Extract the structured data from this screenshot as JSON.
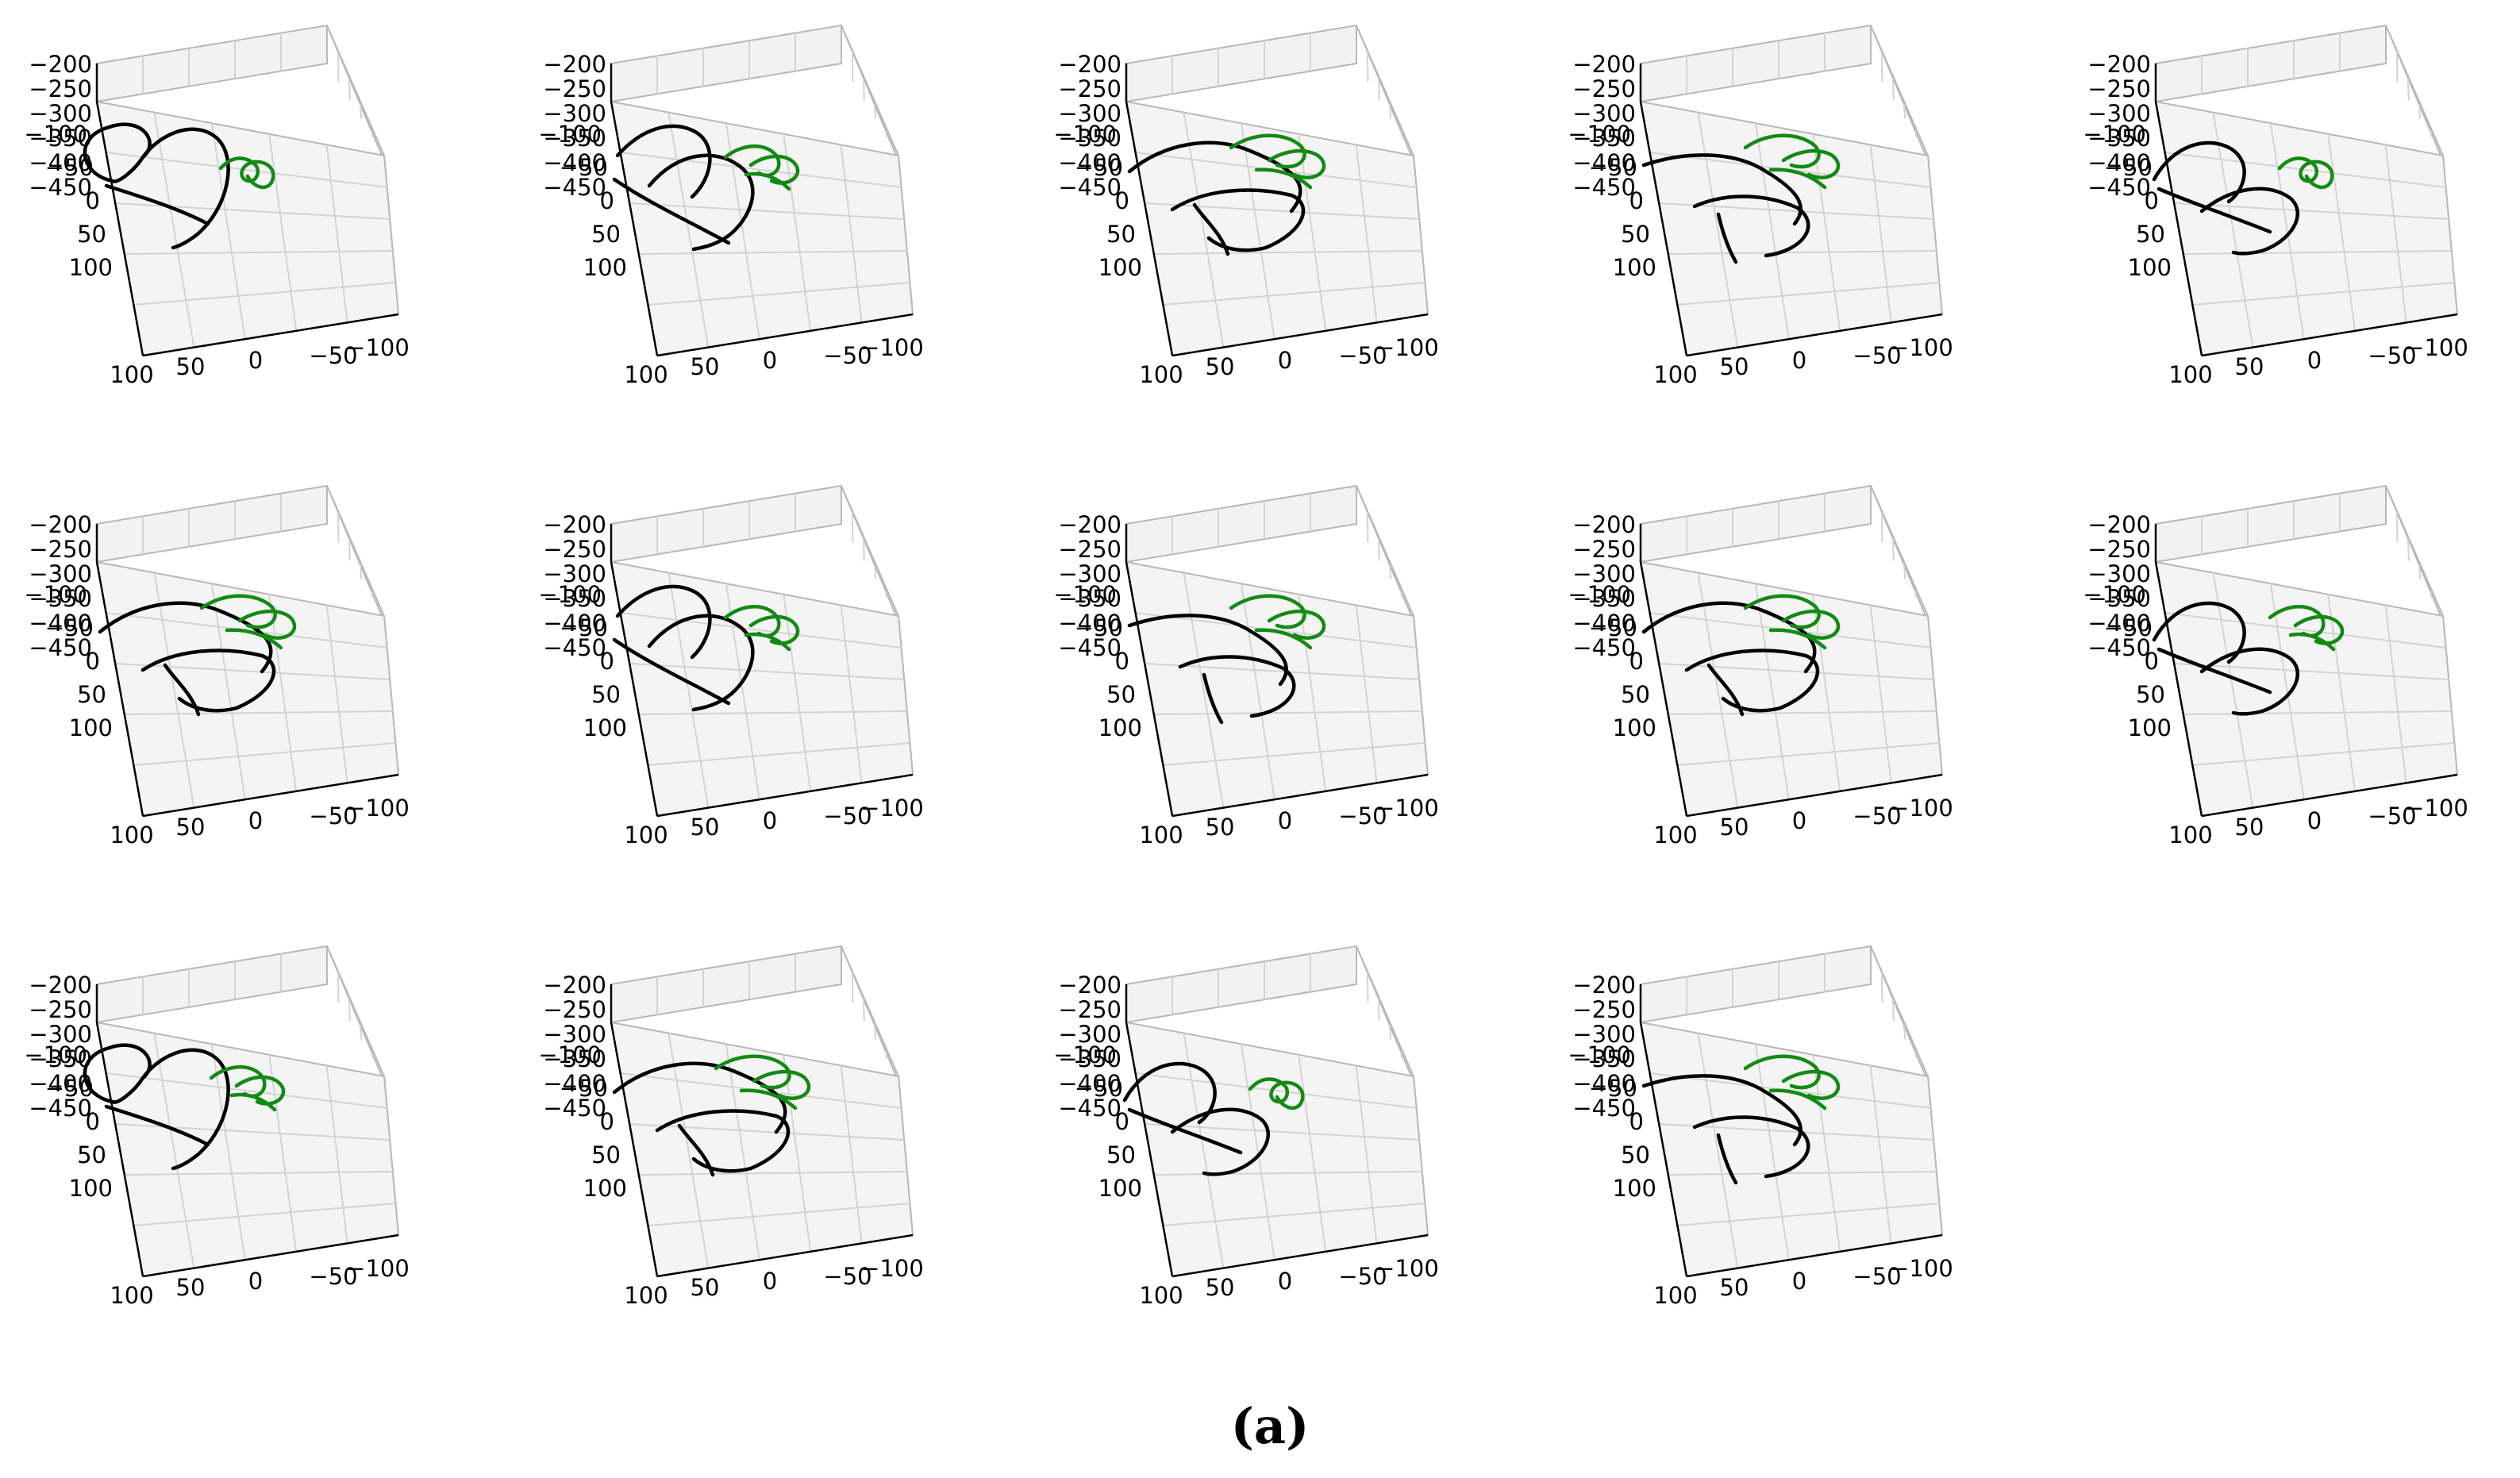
{
  "figure": {
    "caption": "(a)",
    "grid": "3x5",
    "panel_count": 14
  },
  "axes_labels": {
    "z_ticks": [
      "−200",
      "−250",
      "−300",
      "−350",
      "−400",
      "−450"
    ],
    "y_ticks": [
      "−100",
      "−50",
      "0",
      "50",
      "100"
    ],
    "x_ticks": [
      "100",
      "50",
      "0",
      "−50",
      "−100"
    ]
  },
  "colors": {
    "trajectory_black": "#000000",
    "trajectory_green": "#138a13",
    "pane": "#f2f2f2",
    "pane_edge": "#b8b8b8",
    "grid": "#d3d3d3"
  },
  "chart_data": {
    "type": "line3d",
    "xlim": [
      -100,
      100
    ],
    "ylim": [
      -100,
      100
    ],
    "zlim": [
      -450,
      -200
    ],
    "grid": true,
    "series_colors": [
      "black",
      "green"
    ],
    "panels": [
      {
        "index": 1,
        "row": 1,
        "col": 1
      },
      {
        "index": 2,
        "row": 1,
        "col": 2
      },
      {
        "index": 3,
        "row": 1,
        "col": 3
      },
      {
        "index": 4,
        "row": 1,
        "col": 4
      },
      {
        "index": 5,
        "row": 1,
        "col": 5
      },
      {
        "index": 6,
        "row": 2,
        "col": 1
      },
      {
        "index": 7,
        "row": 2,
        "col": 2
      },
      {
        "index": 8,
        "row": 2,
        "col": 3
      },
      {
        "index": 9,
        "row": 2,
        "col": 4
      },
      {
        "index": 10,
        "row": 2,
        "col": 5
      },
      {
        "index": 11,
        "row": 3,
        "col": 1
      },
      {
        "index": 12,
        "row": 3,
        "col": 2
      },
      {
        "index": 13,
        "row": 3,
        "col": 3
      },
      {
        "index": 14,
        "row": 3,
        "col": 4
      }
    ]
  }
}
